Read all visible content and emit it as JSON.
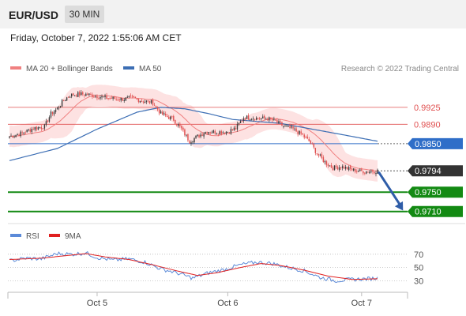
{
  "header": {
    "symbol": "EUR/USD",
    "timeframe": "30 MIN",
    "datetime": "Friday, October 7, 2022 1:55:06 AM CET"
  },
  "colors": {
    "up": "#3a3a3a",
    "down": "#e05050",
    "band_fill": "#fde2e2",
    "ma20": "#f08080",
    "ma50": "#3c6eb4",
    "resistance": "#e05050",
    "current": "#2f6ec8",
    "support": "#138a13",
    "rsi": "#5b8ad8",
    "rsi_ma": "#e02020",
    "arrow": "#2f5da8"
  },
  "chart_data": [
    {
      "type": "candlestick",
      "title": "",
      "legend": [
        {
          "name": "MA 20 + Bollinger Bands",
          "color": "#f08080"
        },
        {
          "name": "MA 50",
          "color": "#3c6eb4"
        }
      ],
      "credit": "Research © 2022 Trading Central",
      "ylim": [
        0.969,
        0.999
      ],
      "x_ticks": [
        {
          "label": "Oct 5",
          "index": 55
        },
        {
          "label": "Oct 6",
          "index": 137
        },
        {
          "label": "Oct 7",
          "index": 221
        }
      ],
      "candles_count": 232,
      "close_path": [
        [
          0,
          0.9865
        ],
        [
          8,
          0.9872
        ],
        [
          15,
          0.9882
        ],
        [
          22,
          0.9885
        ],
        [
          26,
          0.9912
        ],
        [
          30,
          0.9922
        ],
        [
          34,
          0.994
        ],
        [
          38,
          0.995
        ],
        [
          43,
          0.9952
        ],
        [
          48,
          0.9952
        ],
        [
          55,
          0.9948
        ],
        [
          62,
          0.9944
        ],
        [
          70,
          0.9942
        ],
        [
          78,
          0.9944
        ],
        [
          84,
          0.9938
        ],
        [
          90,
          0.9935
        ],
        [
          95,
          0.9912
        ],
        [
          103,
          0.99
        ],
        [
          108,
          0.988
        ],
        [
          113,
          0.9855
        ],
        [
          118,
          0.9865
        ],
        [
          124,
          0.9876
        ],
        [
          130,
          0.9874
        ],
        [
          137,
          0.9875
        ],
        [
          142,
          0.9882
        ],
        [
          147,
          0.9904
        ],
        [
          152,
          0.9904
        ],
        [
          157,
          0.9902
        ],
        [
          162,
          0.9902
        ],
        [
          167,
          0.9896
        ],
        [
          172,
          0.9886
        ],
        [
          178,
          0.988
        ],
        [
          183,
          0.987
        ],
        [
          188,
          0.9855
        ],
        [
          193,
          0.983
        ],
        [
          198,
          0.9812
        ],
        [
          203,
          0.98
        ],
        [
          208,
          0.9803
        ],
        [
          214,
          0.9797
        ],
        [
          220,
          0.9793
        ],
        [
          225,
          0.9793
        ],
        [
          231,
          0.9794
        ]
      ],
      "ma50_path": [
        [
          0,
          0.9815
        ],
        [
          30,
          0.984
        ],
        [
          55,
          0.988
        ],
        [
          80,
          0.9915
        ],
        [
          95,
          0.9925
        ],
        [
          110,
          0.9922
        ],
        [
          125,
          0.9912
        ],
        [
          140,
          0.99
        ],
        [
          155,
          0.9896
        ],
        [
          170,
          0.9892
        ],
        [
          190,
          0.988
        ],
        [
          210,
          0.9868
        ],
        [
          231,
          0.9855
        ]
      ],
      "levels": [
        {
          "value": 0.9925,
          "label": "0.9925",
          "role": "resistance"
        },
        {
          "value": 0.989,
          "label": "0.9890",
          "role": "resistance"
        },
        {
          "value": 0.985,
          "label": "0.9850",
          "role": "pivot"
        },
        {
          "value": 0.9794,
          "label": "0.9794",
          "role": "last"
        },
        {
          "value": 0.975,
          "label": "0.9750",
          "role": "support"
        },
        {
          "value": 0.971,
          "label": "0.9710",
          "role": "support"
        }
      ],
      "forecast_arrow": {
        "from_index": 232,
        "from": 0.979,
        "to_index": 247,
        "to": 0.9712
      }
    },
    {
      "type": "line",
      "legend": [
        {
          "name": "RSI",
          "color": "#5b8ad8"
        },
        {
          "name": "9MA",
          "color": "#e02020"
        }
      ],
      "ylim": [
        15,
        90
      ],
      "y_ticks": [
        70,
        50,
        30
      ],
      "rsi_path": [
        [
          0,
          60
        ],
        [
          10,
          64
        ],
        [
          20,
          63
        ],
        [
          30,
          71
        ],
        [
          40,
          70
        ],
        [
          48,
          72
        ],
        [
          55,
          65
        ],
        [
          65,
          61
        ],
        [
          75,
          63
        ],
        [
          85,
          58
        ],
        [
          95,
          48
        ],
        [
          105,
          42
        ],
        [
          115,
          34
        ],
        [
          125,
          42
        ],
        [
          135,
          47
        ],
        [
          145,
          54
        ],
        [
          155,
          58
        ],
        [
          165,
          56
        ],
        [
          175,
          50
        ],
        [
          185,
          45
        ],
        [
          195,
          35
        ],
        [
          205,
          30
        ],
        [
          215,
          32
        ],
        [
          225,
          33
        ],
        [
          231,
          34
        ]
      ],
      "rsi_ma_path": [
        [
          0,
          62
        ],
        [
          20,
          64
        ],
        [
          40,
          69
        ],
        [
          48,
          71
        ],
        [
          60,
          66
        ],
        [
          75,
          62
        ],
        [
          90,
          54
        ],
        [
          105,
          45
        ],
        [
          118,
          38
        ],
        [
          130,
          42
        ],
        [
          145,
          50
        ],
        [
          158,
          56
        ],
        [
          170,
          53
        ],
        [
          185,
          46
        ],
        [
          200,
          37
        ],
        [
          215,
          32
        ],
        [
          231,
          33
        ]
      ]
    }
  ]
}
